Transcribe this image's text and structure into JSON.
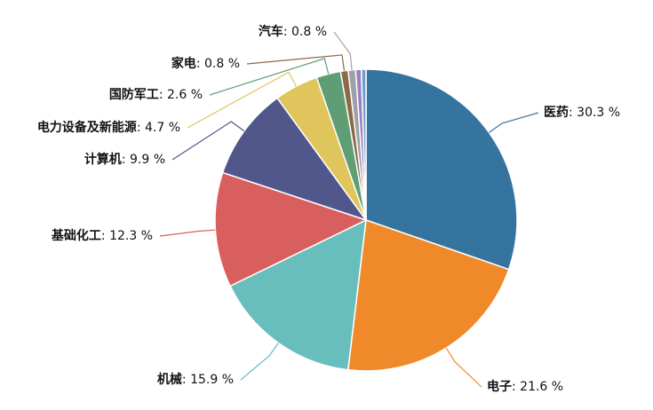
{
  "chart_data": {
    "type": "pie",
    "categories": [
      "医药",
      "电子",
      "机械",
      "基础化工",
      "计算机",
      "电力设备及新能源",
      "国防军工",
      "家电",
      "汽车",
      null,
      null
    ],
    "values": [
      30.3,
      21.6,
      15.9,
      12.3,
      9.9,
      4.7,
      2.6,
      0.8,
      0.8,
      0.6,
      0.5
    ],
    "value_labels": [
      ": 30.3 %",
      ": 21.6 %",
      ": 15.9 %",
      ": 12.3 %",
      ": 9.9 %",
      ": 4.7 %",
      ": 2.6 %",
      ": 0.8 %",
      ": 0.8 %",
      null,
      null
    ],
    "colors": [
      "#3674a0",
      "#f0892a",
      "#68bdbd",
      "#d95f5e",
      "#51568b",
      "#e0c55c",
      "#5f9e74",
      "#8b6a4a",
      "#a0a0a8",
      "#9a7fc0",
      "#6b9fd4"
    ]
  }
}
